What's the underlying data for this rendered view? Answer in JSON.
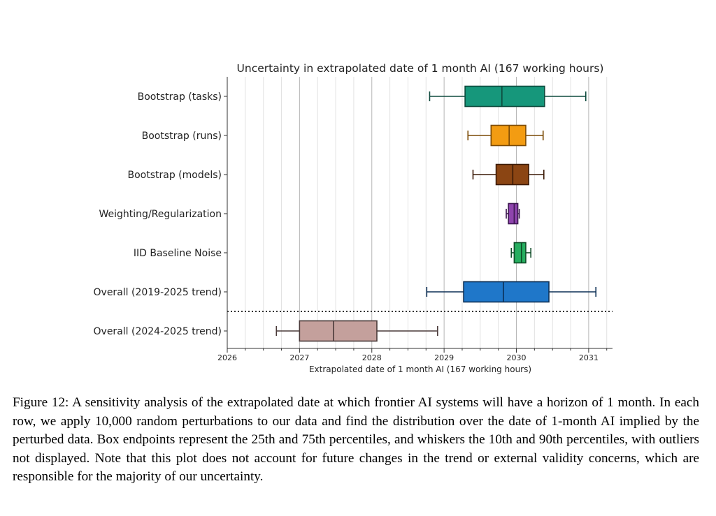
{
  "chart_data": {
    "type": "box",
    "title": "Uncertainty in extrapolated date of 1 month AI (167 working hours)",
    "xlabel": "Extrapolated date of 1 month AI (167 working hours)",
    "ylabel": "",
    "xlim": [
      2026.0,
      2031.33
    ],
    "xticks": [
      2026,
      2027,
      2028,
      2029,
      2030,
      2031
    ],
    "minor_xticks_per_year": 4,
    "grid": "vertical",
    "separator_after_row": 6,
    "rows": [
      {
        "label": "Bootstrap (tasks)",
        "whisker_low": 2028.8,
        "q1": 2029.29,
        "median": 2029.8,
        "q3": 2030.39,
        "whisker_high": 2030.96,
        "color": "#16977b",
        "edge": "#0e4a3d"
      },
      {
        "label": "Bootstrap (runs)",
        "whisker_low": 2029.33,
        "q1": 2029.65,
        "median": 2029.9,
        "q3": 2030.13,
        "whisker_high": 2030.37,
        "color": "#f39c12",
        "edge": "#7a4a05"
      },
      {
        "label": "Bootstrap (models)",
        "whisker_low": 2029.4,
        "q1": 2029.72,
        "median": 2029.95,
        "q3": 2030.17,
        "whisker_high": 2030.38,
        "color": "#8b4513",
        "edge": "#3b1a06"
      },
      {
        "label": "Weighting/Regularization",
        "whisker_low": 2029.86,
        "q1": 2029.89,
        "median": 2029.97,
        "q3": 2030.02,
        "whisker_high": 2030.04,
        "color": "#8e44ad",
        "edge": "#3d1850"
      },
      {
        "label": "IID Baseline Noise",
        "whisker_low": 2029.93,
        "q1": 2029.97,
        "median": 2030.07,
        "q3": 2030.13,
        "whisker_high": 2030.2,
        "color": "#27ae60",
        "edge": "#0d4a26"
      },
      {
        "label": "Overall (2019-2025 trend)",
        "whisker_low": 2028.76,
        "q1": 2029.27,
        "median": 2029.82,
        "q3": 2030.45,
        "whisker_high": 2031.1,
        "color": "#1f77c9",
        "edge": "#0b2f55"
      },
      {
        "label": "Overall (2024-2025 trend)",
        "whisker_low": 2026.68,
        "q1": 2027.0,
        "median": 2027.47,
        "q3": 2028.07,
        "whisker_high": 2028.91,
        "color": "#c4a09c",
        "edge": "#4a3a39"
      }
    ]
  },
  "caption": "Figure 12: A sensitivity analysis of the extrapolated date at which frontier AI systems will have a horizon of 1 month. In each row, we apply 10,000 random perturbations to our data and find the distribution over the date of 1-month AI implied by the perturbed data. Box endpoints represent the 25th and 75th percentiles, and whiskers the 10th and 90th percentiles, with outliers not displayed. Note that this plot does not account for future changes in the trend or external validity concerns, which are responsible for the majority of our uncertainty.",
  "colors": {
    "grid_major": "#b5b5b5",
    "grid_minor": "#e2e2e2",
    "axis": "#333333",
    "separator": "#333333"
  }
}
